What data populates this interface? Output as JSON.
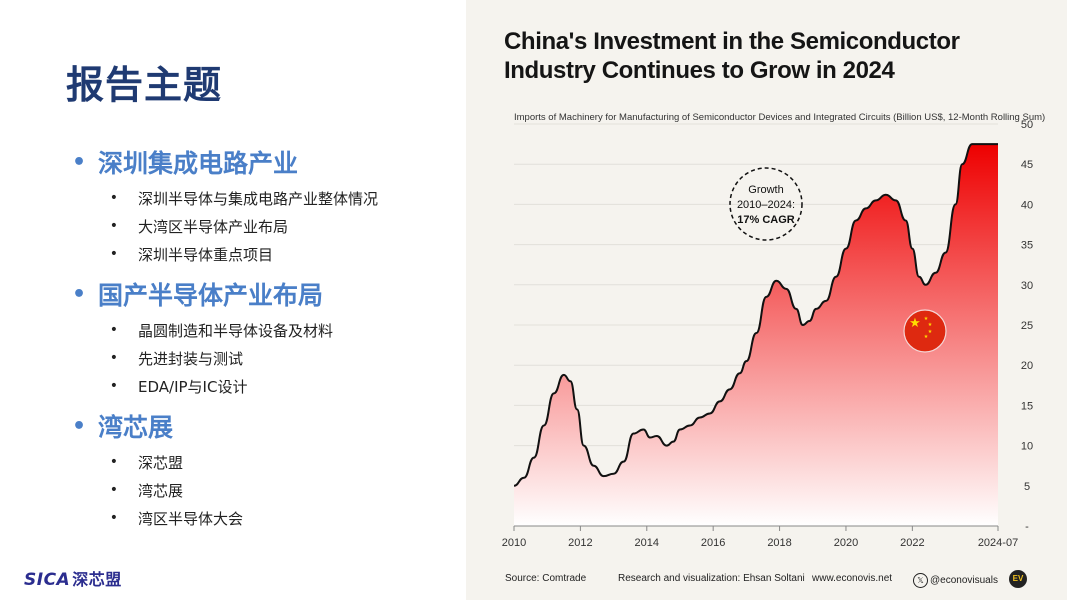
{
  "slide": {
    "title": "报告主题",
    "sections": [
      {
        "heading": "深圳集成电路产业",
        "items": [
          "深圳半导体与集成电路产业整体情况",
          "大湾区半导体产业布局",
          "深圳半导体重点项目"
        ]
      },
      {
        "heading": "国产半导体产业布局",
        "items": [
          "晶圆制造和半导体设备及材料",
          "先进封装与测试",
          "EDA/IP与IC设计"
        ]
      },
      {
        "heading": "湾芯展",
        "items": [
          "深芯盟",
          "湾芯展",
          "湾区半导体大会"
        ]
      }
    ],
    "logo_text": "SICA",
    "logo_cn": "深芯盟"
  },
  "chart_data": {
    "type": "area",
    "title": "China's Investment in the Semiconductor Industry Continues to Grow in 2024",
    "subtitle": "Imports of Machinery for Manufacturing of Semiconductor Devices and Integrated Circuits (Billion US$, 12-Month Rolling Sum)",
    "x_tick_labels": [
      "2010",
      "2012",
      "2014",
      "2016",
      "2018",
      "2020",
      "2022",
      "2024-07"
    ],
    "x_tick_values": [
      2010,
      2012,
      2014,
      2016,
      2018,
      2020,
      2022,
      2024.58
    ],
    "y_tick_labels": [
      "-",
      "5",
      "10",
      "15",
      "20",
      "25",
      "30",
      "35",
      "40",
      "45",
      "50"
    ],
    "ylim": [
      0,
      50
    ],
    "xlim": [
      2010,
      2024.58
    ],
    "series": [
      {
        "name": "Imports (Billion US$)",
        "x": [
          2010.0,
          2010.3,
          2010.6,
          2010.9,
          2011.2,
          2011.5,
          2011.7,
          2011.9,
          2012.1,
          2012.4,
          2012.7,
          2013.0,
          2013.3,
          2013.6,
          2013.9,
          2014.1,
          2014.3,
          2014.6,
          2014.8,
          2015.0,
          2015.3,
          2015.6,
          2015.9,
          2016.2,
          2016.5,
          2016.8,
          2017.0,
          2017.3,
          2017.6,
          2017.9,
          2018.2,
          2018.5,
          2018.7,
          2018.9,
          2019.1,
          2019.4,
          2019.7,
          2020.0,
          2020.3,
          2020.6,
          2020.9,
          2021.2,
          2021.5,
          2021.8,
          2022.0,
          2022.2,
          2022.4,
          2022.7,
          2023.0,
          2023.3,
          2023.5,
          2023.8,
          2024.0,
          2024.2,
          2024.4,
          2024.58
        ],
        "y": [
          5.0,
          6.0,
          8.5,
          12.5,
          16.5,
          18.8,
          18.0,
          14.5,
          10.0,
          7.5,
          6.2,
          6.5,
          8.0,
          11.5,
          12.0,
          11.0,
          11.2,
          10.0,
          10.5,
          12.0,
          12.5,
          13.5,
          14.0,
          15.5,
          17.0,
          19.0,
          20.5,
          24.0,
          28.5,
          30.5,
          29.5,
          27.0,
          25.0,
          25.5,
          27.0,
          28.0,
          31.0,
          34.5,
          38.0,
          39.5,
          40.5,
          41.2,
          40.5,
          38.0,
          34.5,
          31.0,
          30.0,
          31.5,
          34.0,
          40.0,
          45.0,
          47.5,
          47.5,
          47.5,
          47.5,
          47.5
        ]
      }
    ],
    "annotation": [
      "Growth",
      "2010–2024:",
      "17% CAGR"
    ],
    "source": "Source: Comtrade",
    "credit": "Research and visualization: Ehsan Soltani",
    "website": "www.econovis.net",
    "handle": "@econovisuals",
    "badge": "EV"
  },
  "colors": {
    "title": "#1f3a72",
    "section": "#4a7fc8",
    "area_top": "#ee0000",
    "area_bottom": "#ffffff",
    "panel_bg": "#f5f3ee",
    "flag": "#de2910",
    "flag_star": "#ffde00"
  }
}
